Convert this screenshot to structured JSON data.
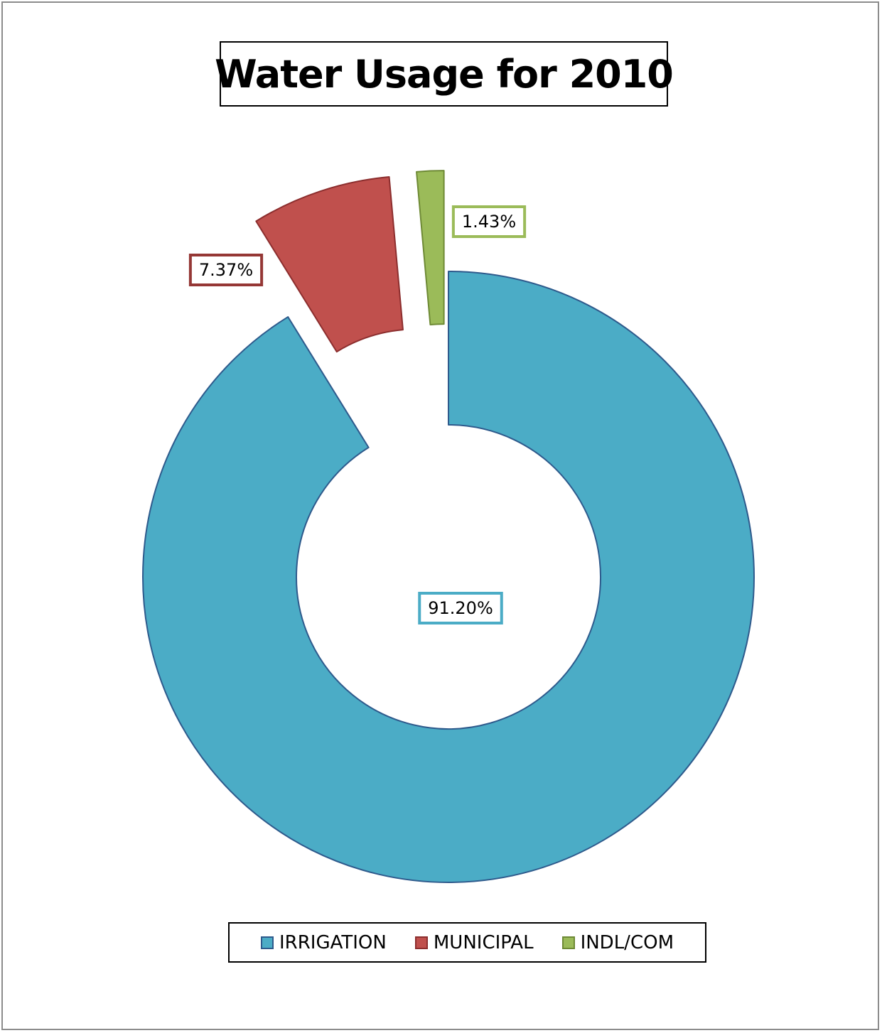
{
  "chart_data": {
    "type": "pie",
    "variant": "doughnut",
    "title": "Water Usage for 2010",
    "categories": [
      "IRRIGATION",
      "MUNICIPAL",
      "INDL/COM"
    ],
    "values": [
      91.2,
      7.37,
      1.43
    ],
    "data_labels": [
      "91.20%",
      "7.37%",
      "1.43%"
    ],
    "exploded": [
      false,
      true,
      true
    ],
    "colors": [
      "#4BACC6",
      "#C0504D",
      "#9BBB59"
    ],
    "border_colors": [
      "#2E5A8C",
      "#8C2E2E",
      "#6E8A35"
    ],
    "label_border_colors": [
      "#4BACC6",
      "#953735",
      "#9BBB59"
    ],
    "legend_position": "bottom"
  }
}
